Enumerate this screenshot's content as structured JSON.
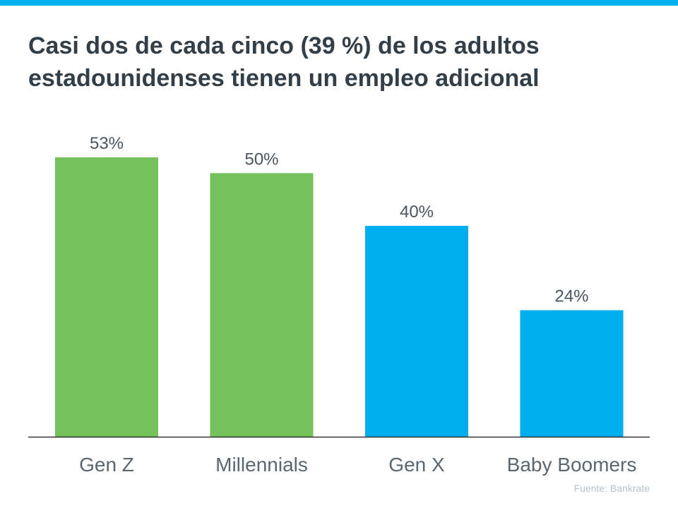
{
  "colors": {
    "top_bar": "#00aeef",
    "title": "#333f48",
    "green": "#76c25a",
    "blue": "#00aeef",
    "axis": "#333333"
  },
  "title_lines": [
    "Casi dos de cada cinco (39 %) de los adultos",
    "estadounidenses tienen un empleo adicional"
  ],
  "source": "Fuente:  Bankrate",
  "chart_data": {
    "type": "bar",
    "title": "Casi dos de cada cinco (39 %) de los adultos estadounidenses tienen un empleo adicional",
    "categories": [
      "Gen Z",
      "Millennials",
      "Gen X",
      "Baby Boomers"
    ],
    "values": [
      53,
      50,
      40,
      24
    ],
    "value_labels": [
      "53%",
      "50%",
      "40%",
      "24%"
    ],
    "bar_colors": [
      "#76c25a",
      "#76c25a",
      "#00aeef",
      "#00aeef"
    ],
    "xlabel": "",
    "ylabel": "",
    "ylim": [
      0,
      53
    ],
    "grid": false,
    "legend": "none"
  }
}
